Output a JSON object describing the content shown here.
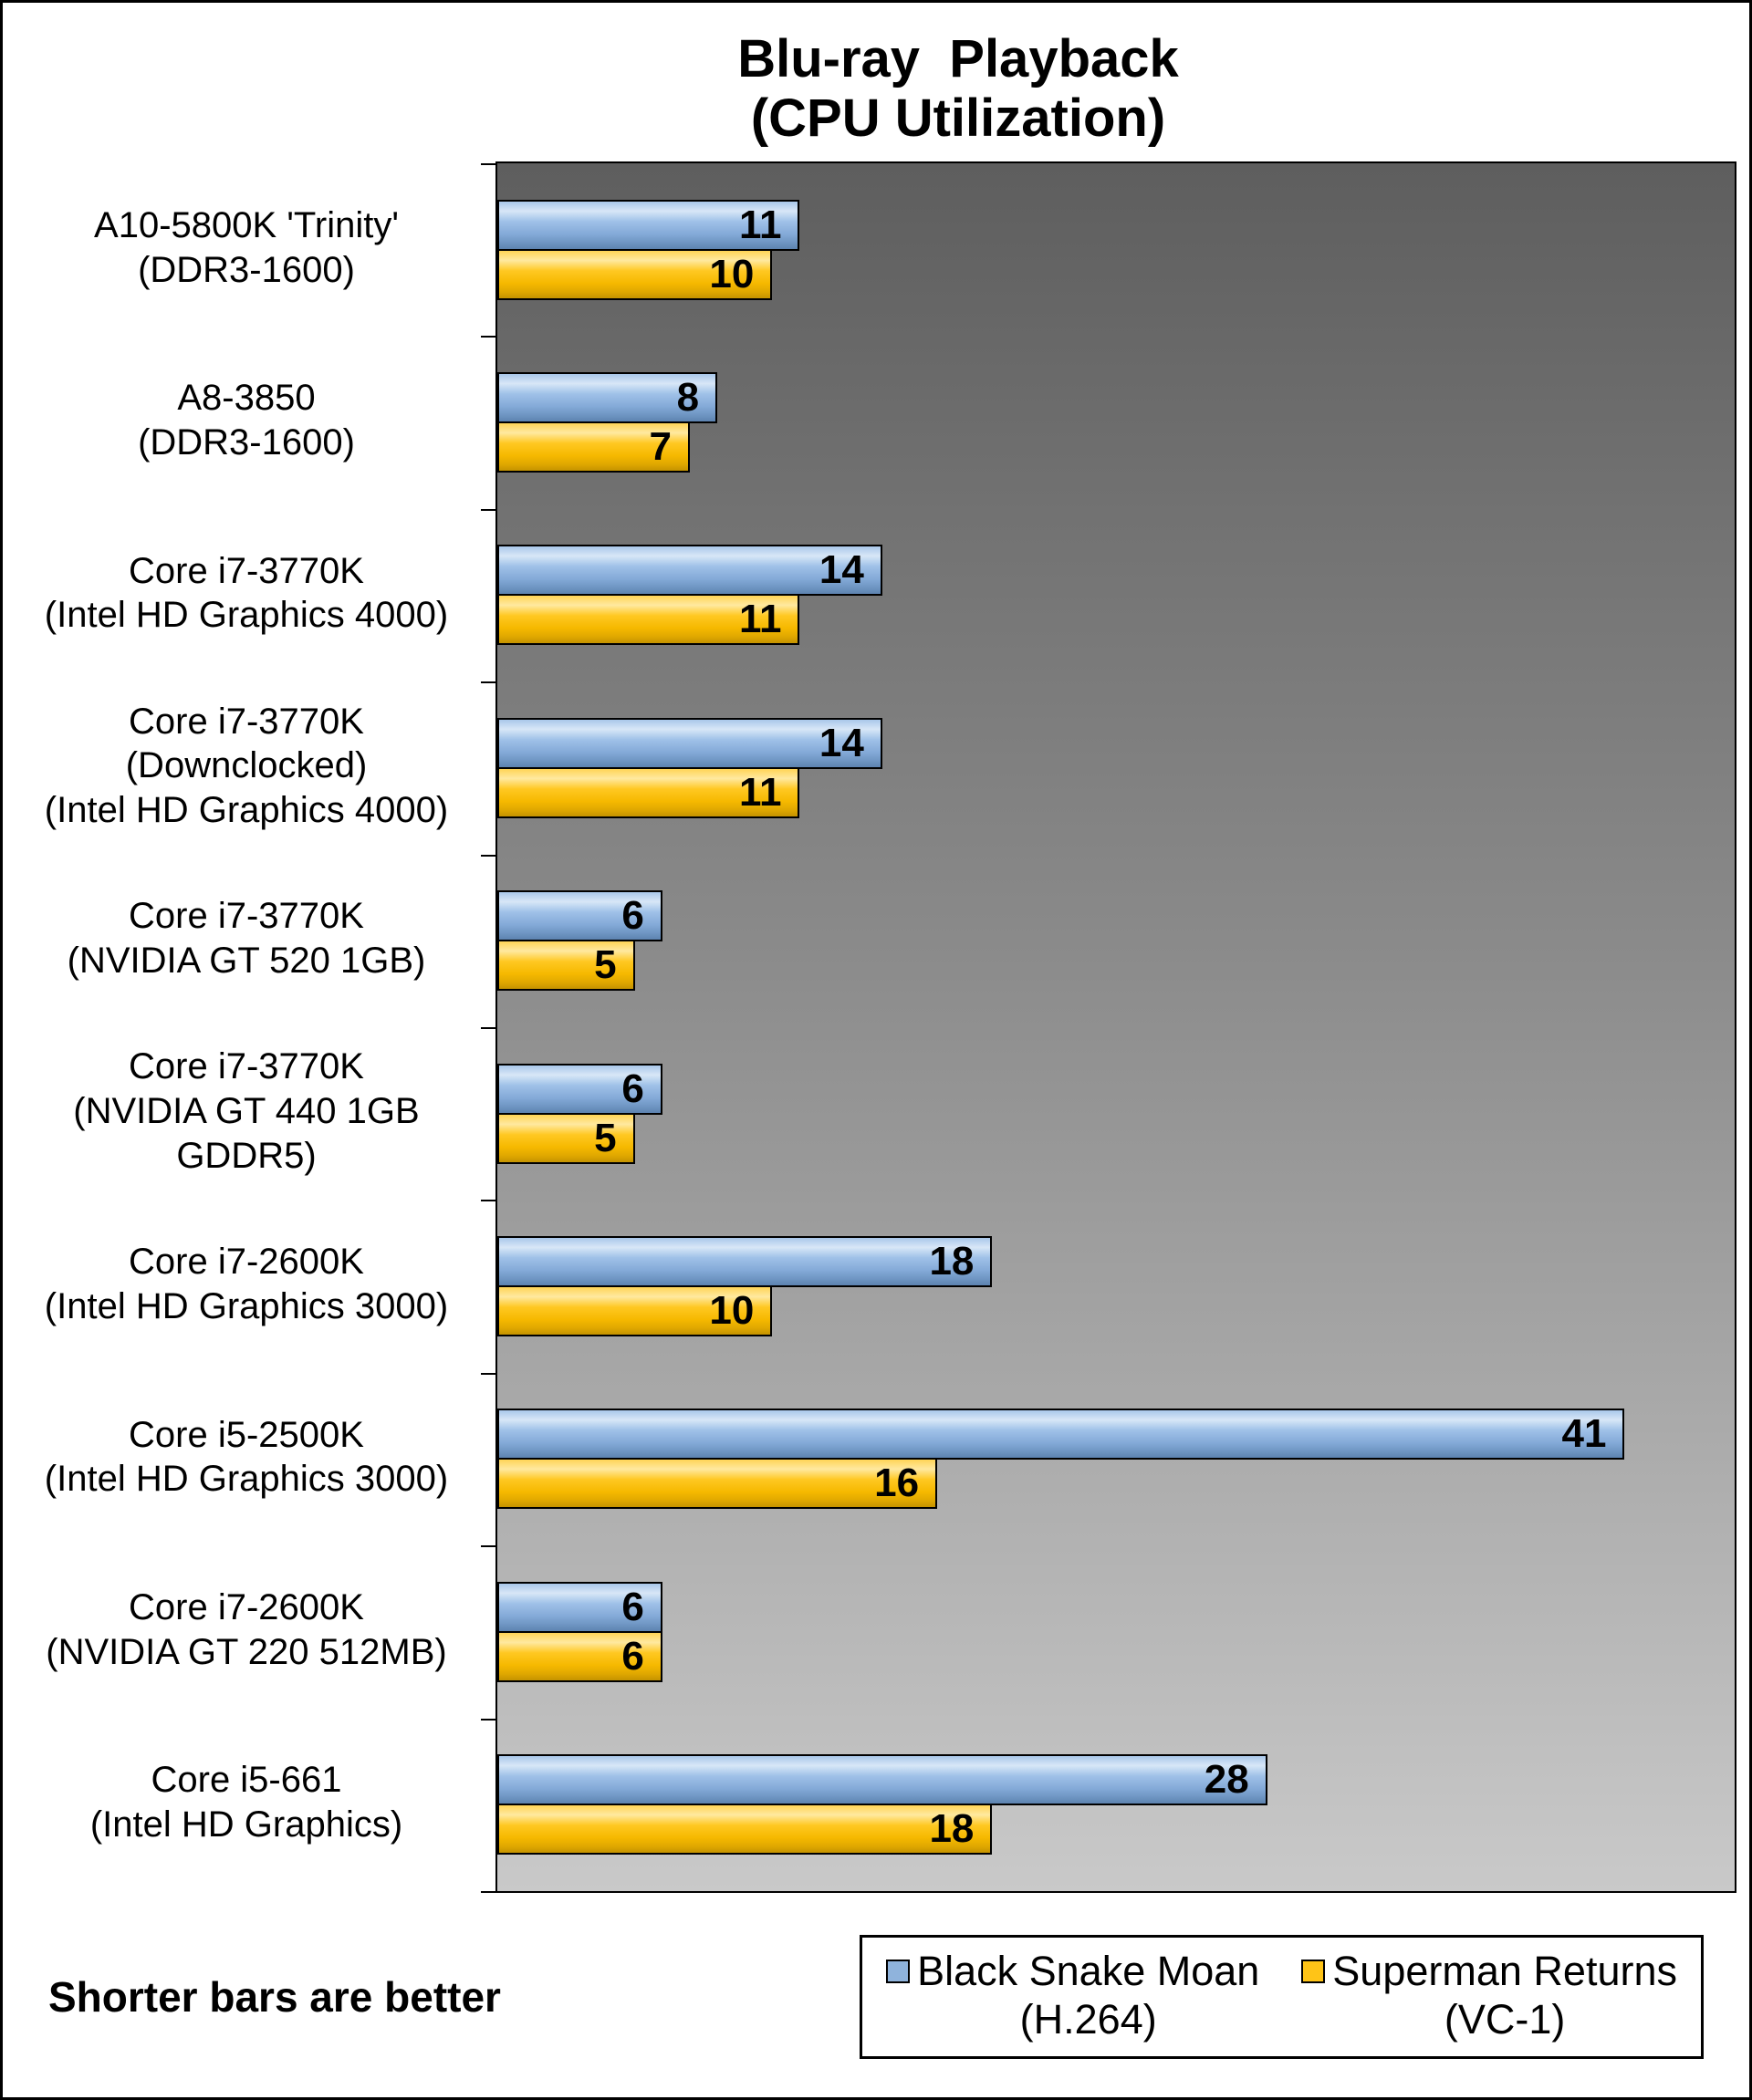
{
  "title": {
    "line1": "Blu-ray  Playback",
    "line2": "(CPU Utilization)"
  },
  "note": "Shorter bars are better",
  "colors": {
    "blue": "#8fb3dc",
    "yellow": "#ffc417",
    "plot_bg_top": "#5e5e5e",
    "plot_bg_bottom": "#c9c9c9"
  },
  "legend": {
    "items": [
      {
        "lines": [
          "Black Snake Moan",
          "(H.264)"
        ],
        "color_key": "blue"
      },
      {
        "lines": [
          "Superman Returns",
          "(VC-1)"
        ],
        "color_key": "yellow"
      }
    ]
  },
  "chart_data": {
    "type": "bar",
    "orientation": "horizontal",
    "title": "Blu-ray Playback (CPU Utilization)",
    "xlabel": "",
    "ylabel": "",
    "xlim": [
      0,
      45
    ],
    "grid": false,
    "legend_position": "bottom",
    "annotation": "Shorter bars are better",
    "categories": [
      "A10-5800K 'Trinity' (DDR3-1600)",
      "A8-3850 (DDR3-1600)",
      "Core i7-3770K (Intel HD Graphics 4000)",
      "Core i7-3770K (Downclocked) (Intel HD Graphics 4000)",
      "Core i7-3770K (NVIDIA GT 520 1GB)",
      "Core i7-3770K (NVIDIA GT 440 1GB GDDR5)",
      "Core i7-2600K (Intel HD Graphics 3000)",
      "Core i5-2500K (Intel HD Graphics 3000)",
      "Core i7-2600K (NVIDIA GT 220 512MB)",
      "Core i5-661 (Intel HD Graphics)"
    ],
    "series": [
      {
        "name": "Black Snake Moan (H.264)",
        "color": "#8fb3dc",
        "values": [
          11,
          8,
          14,
          14,
          6,
          6,
          18,
          41,
          6,
          28
        ]
      },
      {
        "name": "Superman Returns (VC-1)",
        "color": "#ffc417",
        "values": [
          10,
          7,
          11,
          11,
          5,
          5,
          10,
          16,
          6,
          18
        ]
      }
    ],
    "groups": [
      {
        "label_lines": [
          "A10-5800K 'Trinity'",
          "(DDR3-1600)"
        ],
        "values": {
          "h264": 11,
          "vc1": 10
        }
      },
      {
        "label_lines": [
          "A8-3850",
          "(DDR3-1600)"
        ],
        "values": {
          "h264": 8,
          "vc1": 7
        }
      },
      {
        "label_lines": [
          "Core i7-3770K",
          "(Intel HD Graphics 4000)"
        ],
        "values": {
          "h264": 14,
          "vc1": 11
        }
      },
      {
        "label_lines": [
          "Core i7-3770K",
          "(Downclocked)",
          "(Intel HD Graphics 4000)"
        ],
        "values": {
          "h264": 14,
          "vc1": 11
        }
      },
      {
        "label_lines": [
          "Core i7-3770K",
          "(NVIDIA GT 520 1GB)"
        ],
        "values": {
          "h264": 6,
          "vc1": 5
        }
      },
      {
        "label_lines": [
          "Core i7-3770K",
          "(NVIDIA GT 440 1GB",
          "GDDR5)"
        ],
        "values": {
          "h264": 6,
          "vc1": 5
        }
      },
      {
        "label_lines": [
          "Core i7-2600K",
          "(Intel HD Graphics 3000)"
        ],
        "values": {
          "h264": 18,
          "vc1": 10
        }
      },
      {
        "label_lines": [
          "Core i5-2500K",
          "(Intel HD Graphics 3000)"
        ],
        "values": {
          "h264": 41,
          "vc1": 16
        }
      },
      {
        "label_lines": [
          "Core i7-2600K",
          "(NVIDIA GT 220 512MB)"
        ],
        "values": {
          "h264": 6,
          "vc1": 6
        }
      },
      {
        "label_lines": [
          "Core i5-661",
          "(Intel HD Graphics)"
        ],
        "values": {
          "h264": 28,
          "vc1": 18
        }
      }
    ]
  }
}
